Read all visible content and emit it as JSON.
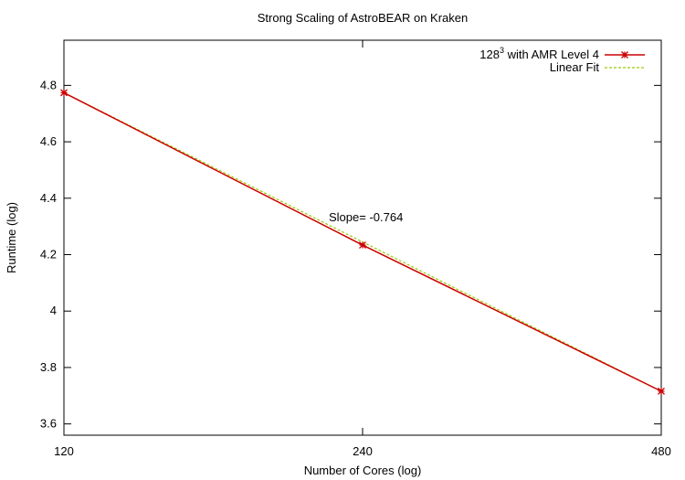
{
  "chart_data": {
    "type": "line",
    "title": "Strong Scaling of AstroBEAR on Kraken",
    "xlabel": "Number of Cores (log)",
    "ylabel": "Runtime (log)",
    "x_scale": "log",
    "x_ticks": [
      120,
      240,
      480
    ],
    "x_tick_labels": [
      "120",
      "240",
      "480"
    ],
    "xlim": [
      120,
      480
    ],
    "ylim": [
      3.56,
      4.96
    ],
    "y_ticks": [
      3.6,
      3.8,
      4,
      4.2,
      4.4,
      4.6,
      4.8
    ],
    "y_tick_labels": [
      "3.6",
      "3.8",
      "4",
      "4.2",
      "4.4",
      "4.6",
      "4.8"
    ],
    "series": [
      {
        "name_base": "128",
        "name_sup": "3",
        "name_rest": " with AMR Level 4",
        "color": "#cc0000",
        "marker": "asterisk",
        "x": [
          120,
          240,
          480
        ],
        "y": [
          4.774,
          4.234,
          3.716
        ]
      },
      {
        "name": "Linear Fit",
        "color": "#99cc00",
        "dashed": true,
        "x": [
          120,
          480
        ],
        "y": [
          4.774,
          3.716
        ]
      }
    ],
    "annotation": "Slope= -0.764",
    "legend_position": "top-right",
    "grid": false
  }
}
